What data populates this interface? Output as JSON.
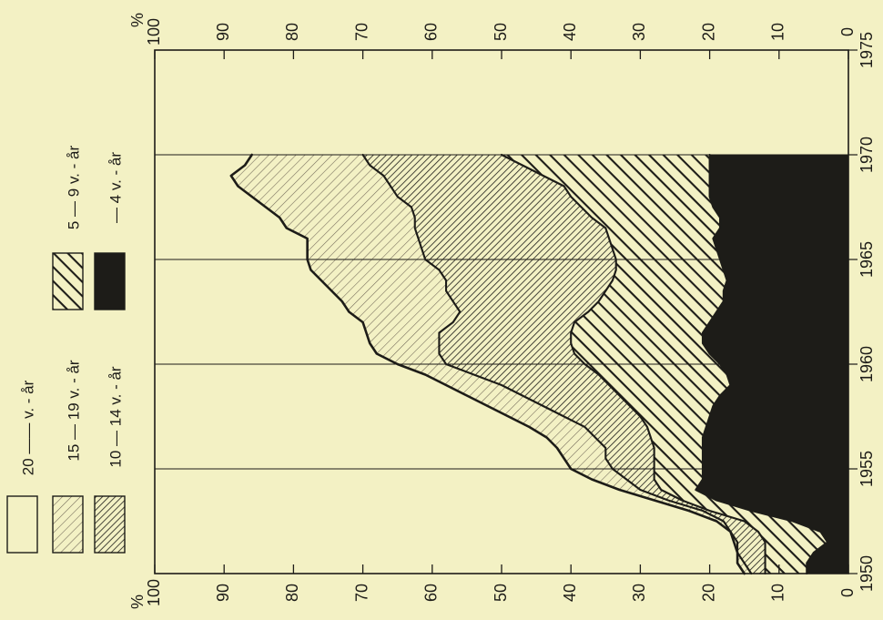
{
  "chart_data": {
    "type": "area",
    "orientation": "rotated-90-clockwise",
    "stacking": "cumulative-percent",
    "x_unit": "year",
    "y_unit": "%",
    "xlim": [
      1950,
      1975
    ],
    "ylim": [
      0,
      100
    ],
    "x_ticks": [
      "1950",
      "1955",
      "1960",
      "1965",
      "1970",
      "1975"
    ],
    "y_ticks": [
      "0",
      "10",
      "20",
      "30",
      "40",
      "50",
      "60",
      "70",
      "80",
      "90",
      "100"
    ],
    "y_axis_label": "%",
    "grid_x_lines": [
      1955,
      1960,
      1965,
      1970
    ],
    "x": [
      1950,
      1950.5,
      1951,
      1951.5,
      1952,
      1952.5,
      1953,
      1953.5,
      1954,
      1954.5,
      1955,
      1955.5,
      1956,
      1956.5,
      1957,
      1957.5,
      1958,
      1958.5,
      1959,
      1959.5,
      1960,
      1960.5,
      1961,
      1961.5,
      1962,
      1962.5,
      1963,
      1963.5,
      1964,
      1964.5,
      1965,
      1965.5,
      1966,
      1966.5,
      1967,
      1967.5,
      1968,
      1968.5,
      1969,
      1969.5,
      1970
    ],
    "series": [
      {
        "name": "— 4 v. - år",
        "fill": "solid",
        "color": "#1d1c18",
        "upper": [
          6,
          6,
          5,
          3,
          4,
          8,
          14,
          19,
          22,
          21,
          21,
          21,
          21,
          21,
          20.5,
          20,
          19.5,
          18.5,
          17,
          17.5,
          18.5,
          20,
          21,
          21,
          20,
          19,
          18,
          18,
          17.5,
          18,
          18.5,
          19,
          19.5,
          18.5,
          18.5,
          19.5,
          20,
          20,
          20,
          20,
          20
        ]
      },
      {
        "name": "5 — 9 v. - år",
        "fill": "wide-hatch",
        "color": "#1d1c18",
        "upper": [
          12,
          12,
          12,
          12,
          13,
          15,
          20,
          24,
          27,
          28,
          28,
          28,
          28,
          28.5,
          29,
          30,
          31.5,
          33,
          34.5,
          36,
          38,
          39.5,
          40,
          40,
          39.5,
          37.5,
          36,
          35,
          34,
          33.5,
          33.5,
          34,
          34.5,
          35,
          37,
          38.5,
          40,
          41,
          44,
          47,
          50
        ]
      },
      {
        "name": "10 — 14 v. - år",
        "fill": "dense-hatch",
        "color": "#1d1c18",
        "upper": [
          14,
          15,
          16,
          16,
          17,
          18,
          21,
          26,
          30,
          32,
          34,
          35,
          35,
          36.5,
          38,
          41,
          44,
          47,
          50,
          54,
          58,
          59,
          59,
          59,
          57,
          56,
          57,
          58,
          58,
          59,
          61,
          61.5,
          62,
          62.5,
          62.5,
          63,
          65,
          66,
          67,
          69,
          70
        ]
      },
      {
        "name": "15 — 19 v. - år",
        "fill": "fine-hatch",
        "color": "#1d1c18",
        "upper": [
          15,
          16,
          16,
          16.5,
          17,
          19,
          23,
          28,
          33,
          37,
          40,
          41,
          42,
          43.5,
          46,
          49,
          52,
          55,
          58,
          61,
          65,
          68,
          69,
          69.5,
          70,
          72,
          73,
          74.5,
          76,
          77.5,
          78,
          78,
          78,
          81,
          82,
          84,
          86,
          88,
          89,
          87,
          86
        ]
      },
      {
        "name": "20 —— v. - år",
        "fill": "none",
        "color": "#f3f1c4",
        "upper": [
          100,
          100,
          100,
          100,
          100,
          100,
          100,
          100,
          100,
          100,
          100,
          100,
          100,
          100,
          100,
          100,
          100,
          100,
          100,
          100,
          100,
          100,
          100,
          100,
          100,
          100,
          100,
          100,
          100,
          100,
          100,
          100,
          100,
          100,
          100,
          100,
          100,
          100,
          100,
          100,
          100
        ]
      }
    ],
    "legend": {
      "placement": "top-left",
      "items": [
        {
          "label": "20 —— v. - år",
          "pattern": "none"
        },
        {
          "label": "15 — 19 v. - år",
          "pattern": "fine-hatch"
        },
        {
          "label": "10 — 14 v. - år",
          "pattern": "dense-hatch"
        },
        {
          "label": "5 — 9 v. - år",
          "pattern": "wide-hatch"
        },
        {
          "label": "— 4 v. - år",
          "pattern": "solid"
        }
      ]
    },
    "colors": {
      "background": "#f3f1c4",
      "ink": "#1d1c18"
    }
  }
}
